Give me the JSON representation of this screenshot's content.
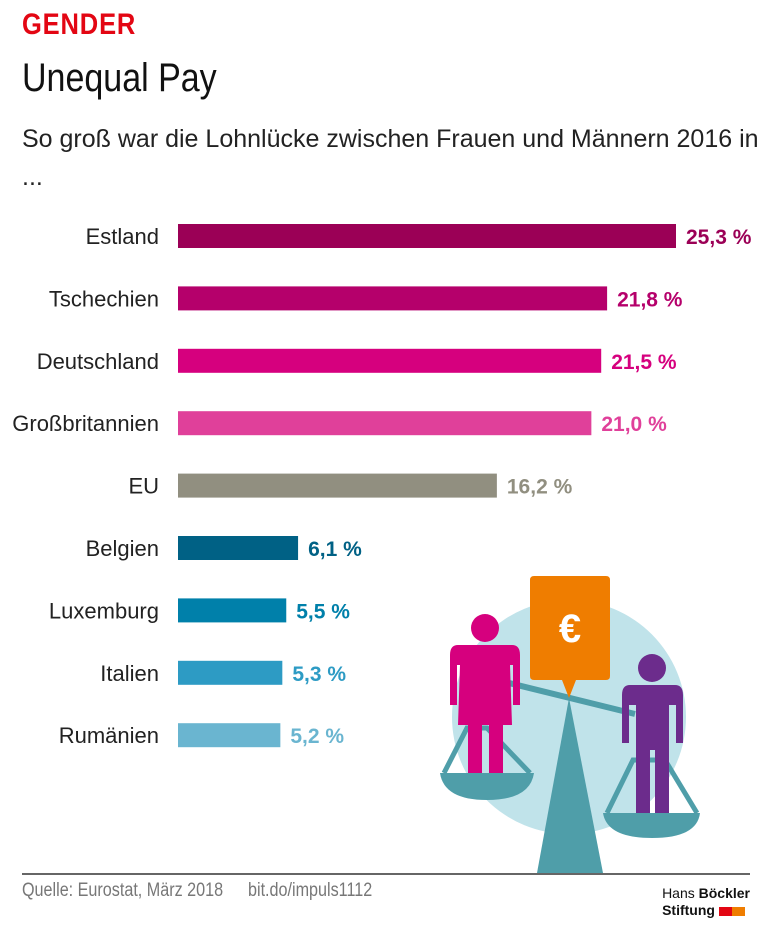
{
  "header": {
    "kicker": "GENDER",
    "title": "Unequal Pay",
    "subtitle": "So groß war die Lohnlücke zwischen Frauen und Männern 2016 in ..."
  },
  "chart_data": {
    "type": "bar",
    "orientation": "horizontal",
    "categories": [
      "Estland",
      "Tschechien",
      "Deutschland",
      "Großbritannien",
      "EU",
      "Belgien",
      "Luxemburg",
      "Italien",
      "Rumänien"
    ],
    "values": [
      25.3,
      21.8,
      21.5,
      21.0,
      16.2,
      6.1,
      5.5,
      5.3,
      5.2
    ],
    "data_labels": [
      "25,3 %",
      "21,8 %",
      "21,5 %",
      "21,0 %",
      "16,2 %",
      "6,1 %",
      "5,5 %",
      "5,3 %",
      "5,2 %"
    ],
    "colors": [
      "#9b0056",
      "#b5006b",
      "#d6007e",
      "#e0409a",
      "#918f80",
      "#006185",
      "#0080aa",
      "#2d9bc4",
      "#6ab5d0"
    ],
    "unit": "%",
    "xlim": [
      0,
      25.3
    ],
    "grid": false
  },
  "illustration": {
    "symbol": "€",
    "colors": {
      "woman": "#d6007e",
      "man": "#6c2c8c",
      "scale": "#4f9ea9",
      "circle": "#c0e3ea",
      "bubble": "#ef7d00"
    }
  },
  "footer": {
    "source": "Quelle: Eurostat, März 2018",
    "link": "bit.do/impuls1112",
    "logo_line1_a": "Hans",
    "logo_line1_b": "Böckler",
    "logo_line2": "Stiftung",
    "logo_colors": [
      "#e30613",
      "#ef7d00"
    ]
  }
}
